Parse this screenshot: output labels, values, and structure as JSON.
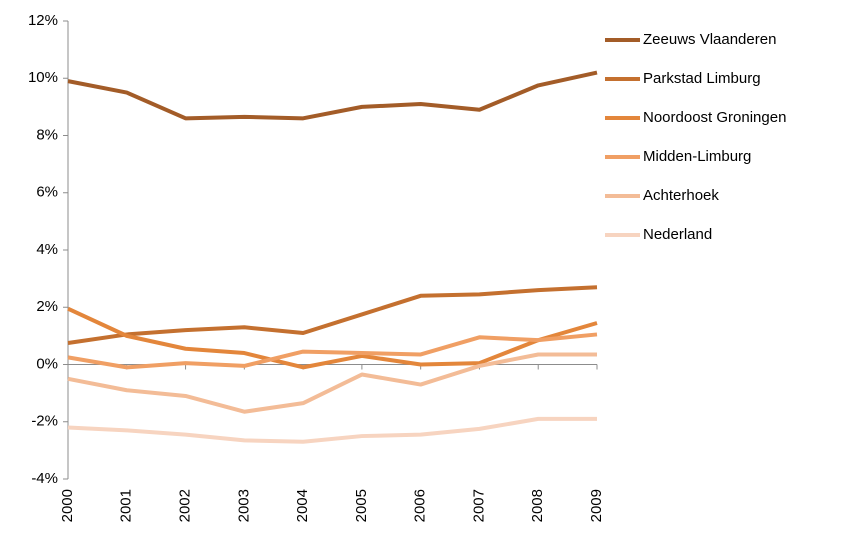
{
  "chart_data": {
    "type": "line",
    "categories": [
      "2000",
      "2001",
      "2002",
      "2003",
      "2004",
      "2005",
      "2006",
      "2007",
      "2008",
      "2009"
    ],
    "series": [
      {
        "name": "Zeeuws Vlaanderen",
        "color": "#a35c28",
        "values": [
          9.9,
          9.5,
          8.6,
          8.65,
          8.6,
          9.0,
          9.1,
          8.9,
          9.75,
          10.2
        ]
      },
      {
        "name": "Parkstad Limburg",
        "color": "#c4702f",
        "values": [
          0.75,
          1.05,
          1.2,
          1.3,
          1.1,
          1.75,
          2.4,
          2.45,
          2.6,
          2.7
        ]
      },
      {
        "name": "Noordoost Groningen",
        "color": "#e3863b",
        "values": [
          1.95,
          1.0,
          0.55,
          0.4,
          -0.1,
          0.3,
          0.0,
          0.05,
          0.85,
          1.45
        ]
      },
      {
        "name": "Midden-Limburg",
        "color": "#f09f64",
        "values": [
          0.25,
          -0.1,
          0.05,
          -0.05,
          0.45,
          0.4,
          0.35,
          0.95,
          0.85,
          1.05
        ]
      },
      {
        "name": "Achterhoek",
        "color": "#f3bc97",
        "values": [
          -0.5,
          -0.9,
          -1.1,
          -1.65,
          -1.35,
          -0.35,
          -0.7,
          -0.05,
          0.35,
          0.35
        ]
      },
      {
        "name": "Nederland",
        "color": "#f7d4c0",
        "values": [
          -2.2,
          -2.3,
          -2.45,
          -2.65,
          -2.7,
          -2.5,
          -2.45,
          -2.25,
          -1.9,
          -1.9
        ]
      }
    ],
    "ylim": [
      -4,
      12
    ],
    "yticks": [
      {
        "value": -4,
        "label": "-4%"
      },
      {
        "value": -2,
        "label": "-2%"
      },
      {
        "value": 0,
        "label": "0%"
      },
      {
        "value": 2,
        "label": "2%"
      },
      {
        "value": 4,
        "label": "4%"
      },
      {
        "value": 6,
        "label": "6%"
      },
      {
        "value": 8,
        "label": "8%"
      },
      {
        "value": 10,
        "label": "10%"
      },
      {
        "value": 12,
        "label": "12%"
      }
    ],
    "grid": false,
    "legend": "right"
  }
}
